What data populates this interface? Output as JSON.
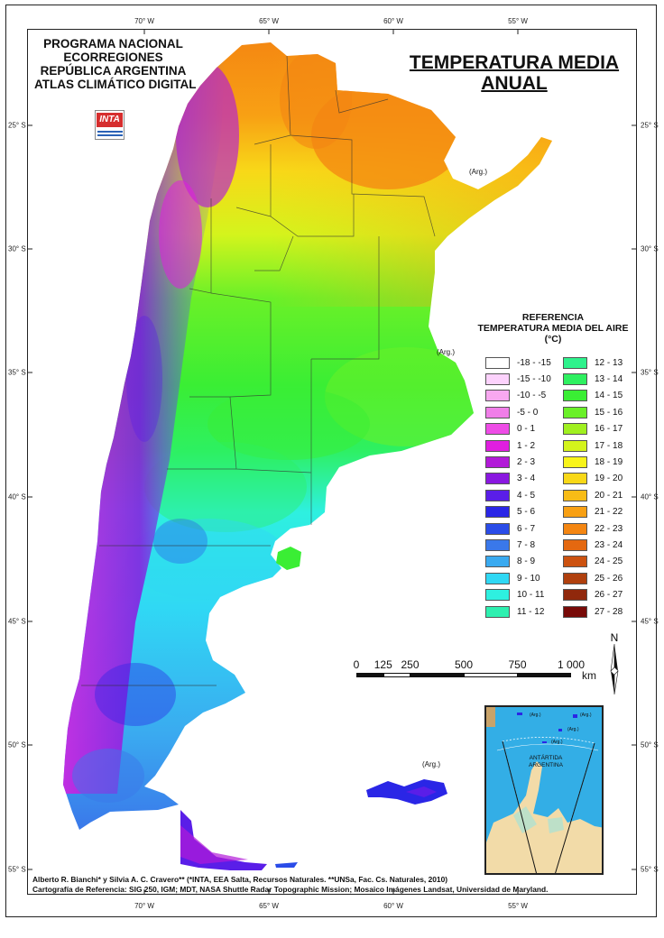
{
  "header": {
    "org_lines": [
      "PROGRAMA NACIONAL",
      "ECORREGIONES",
      "REPÚBLICA ARGENTINA",
      "ATLAS CLIMÁTICO DIGITAL"
    ],
    "logo_text": "INTA",
    "title_lines": [
      "TEMPERATURA MEDIA",
      "ANUAL"
    ]
  },
  "graticule": {
    "longitudes": [
      "70° W",
      "65° W",
      "60° W",
      "55° W"
    ],
    "latitudes": [
      "25° S",
      "30° S",
      "35° S",
      "40° S",
      "45° S",
      "50° S",
      "55° S"
    ]
  },
  "legend": {
    "heading_lines": [
      "REFERENCIA",
      "TEMPERATURA MEDIA DEL AIRE",
      "(°C)"
    ],
    "left_classes": [
      {
        "label": "-18 - -15",
        "color": "#ffffff"
      },
      {
        "label": "-15 - -10",
        "color": "#fcd2fc"
      },
      {
        "label": "-10 - -5",
        "color": "#f8a8f0"
      },
      {
        "label": "-5 - 0",
        "color": "#f07ee8"
      },
      {
        "label": "0 - 1",
        "color": "#ee4ce6"
      },
      {
        "label": "1 - 2",
        "color": "#e01ee0"
      },
      {
        "label": "2 - 3",
        "color": "#b21ad8"
      },
      {
        "label": "3 - 4",
        "color": "#8a18e0"
      },
      {
        "label": "4 - 5",
        "color": "#5a1ee8"
      },
      {
        "label": "5 - 6",
        "color": "#2a26e6"
      },
      {
        "label": "6 - 7",
        "color": "#2a4ce8"
      },
      {
        "label": "7 - 8",
        "color": "#3a78ea"
      },
      {
        "label": "8 - 9",
        "color": "#3aaaf0"
      },
      {
        "label": "9 - 10",
        "color": "#30d8f4"
      },
      {
        "label": "10 - 11",
        "color": "#2ef0e0"
      },
      {
        "label": "11 - 12",
        "color": "#2ef0b0"
      }
    ],
    "right_classes": [
      {
        "label": "12 - 13",
        "color": "#2ef28c"
      },
      {
        "label": "13 - 14",
        "color": "#2ef060"
      },
      {
        "label": "14 - 15",
        "color": "#3aee34"
      },
      {
        "label": "15 - 16",
        "color": "#6af028"
      },
      {
        "label": "16 - 17",
        "color": "#a0f020"
      },
      {
        "label": "17 - 18",
        "color": "#d4f41c"
      },
      {
        "label": "18 - 19",
        "color": "#f8f41a"
      },
      {
        "label": "19 - 20",
        "color": "#f8d818"
      },
      {
        "label": "20 - 21",
        "color": "#f8bc16"
      },
      {
        "label": "21 - 22",
        "color": "#f8a014"
      },
      {
        "label": "22 - 23",
        "color": "#f48612"
      },
      {
        "label": "23 - 24",
        "color": "#e46810"
      },
      {
        "label": "24 - 25",
        "color": "#cc5210"
      },
      {
        "label": "25 - 26",
        "color": "#b0400e"
      },
      {
        "label": "26 - 27",
        "color": "#90280c"
      },
      {
        "label": "27 - 28",
        "color": "#780a08"
      }
    ]
  },
  "scale": {
    "labels": [
      "0",
      "125",
      "250",
      "500",
      "750",
      "1 000"
    ],
    "unit": "km"
  },
  "north_label": "N",
  "place_labels": [
    "(Arg.)",
    "(Arg.)",
    "(Arg.)"
  ],
  "inset": {
    "label_lines": [
      "ANTÁRTIDA",
      "ARGENTINA"
    ],
    "arg_labels": [
      "(Arg.)",
      "(Arg.)",
      "(Arg.)",
      "(Arg.)"
    ]
  },
  "credits": [
    "Alberto R. Bianchi* y Silvia A. C. Cravero** (*INTA, EEA Salta, Recursos Naturales. **UNSa, Fac. Cs. Naturales, 2010)",
    "Cartografía de Referencia: SIG 250, IGM; MDT, NASA Shuttle Radar Topographic Mission; Mosaico Imágenes Landsat, Universidad de Maryland."
  ]
}
